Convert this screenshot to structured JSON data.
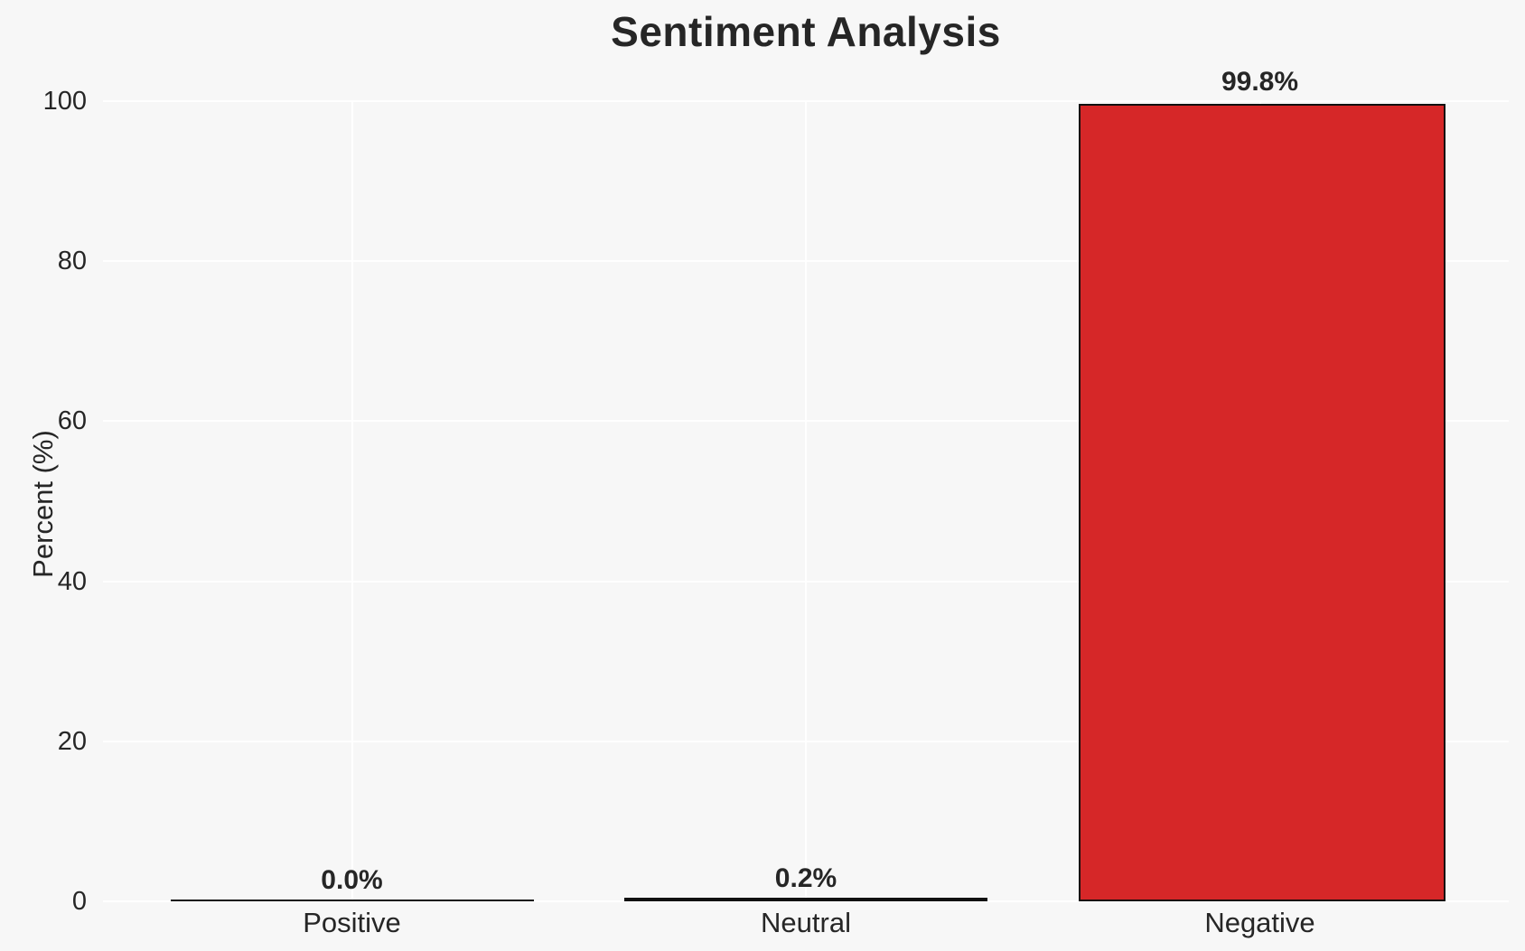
{
  "figure": {
    "background": "#f7f7f7",
    "grid_color": "#ffffff",
    "text_color": "#262626"
  },
  "chart_data": {
    "type": "bar",
    "title": "Sentiment Analysis",
    "xlabel": "",
    "ylabel": "Percent (%)",
    "categories": [
      "Positive",
      "Neutral",
      "Negative"
    ],
    "values": [
      0.0,
      0.2,
      99.8
    ],
    "value_labels": [
      "0.0%",
      "0.2%",
      "99.8%"
    ],
    "ylim": [
      0,
      100
    ],
    "yticks": [
      0,
      20,
      40,
      60,
      80,
      100
    ],
    "ytick_labels": [
      "0",
      "20",
      "40",
      "60",
      "80",
      "100"
    ],
    "bar_color": "#d62728",
    "bar_edge_color": "#111111",
    "grid": true,
    "legend": false
  }
}
